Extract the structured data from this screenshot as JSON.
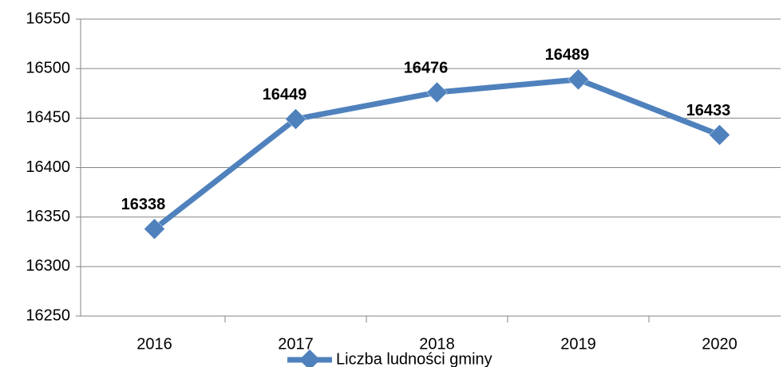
{
  "chart_data": {
    "type": "line",
    "categories": [
      "2016",
      "2017",
      "2018",
      "2019",
      "2020"
    ],
    "series": [
      {
        "name": "Liczba ludności gminy",
        "color": "#4f81bd",
        "values": [
          16338,
          16449,
          16476,
          16489,
          16433
        ]
      }
    ],
    "ylim": [
      16250,
      16550
    ],
    "yticks": [
      16250,
      16300,
      16350,
      16400,
      16450,
      16500,
      16550
    ],
    "grid": true,
    "legend": "bottom"
  }
}
